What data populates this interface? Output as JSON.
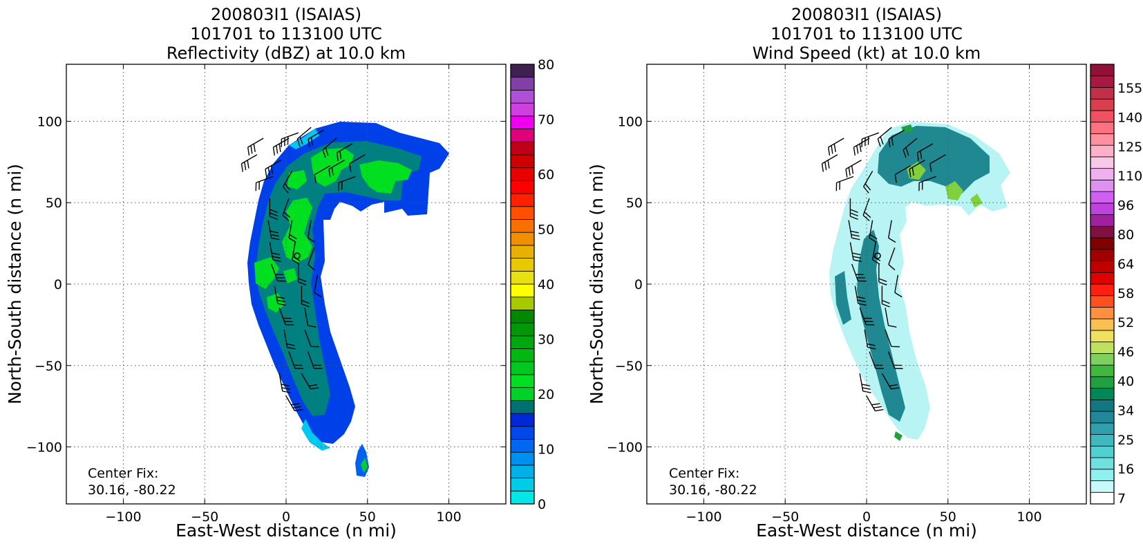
{
  "chart_data": [
    {
      "type": "heatmap",
      "title": [
        "200803I1 (ISAIAS)",
        "101701 to 113100 UTC",
        "Reflectivity (dBZ) at 10.0 km"
      ],
      "xlabel": "East-West distance (n mi)",
      "ylabel": "North-South distance (n mi)",
      "xlim": [
        -135,
        135
      ],
      "ylim": [
        -135,
        135
      ],
      "xticks": [
        -100,
        -50,
        0,
        50,
        100
      ],
      "yticks": [
        -100,
        -50,
        0,
        50,
        100
      ],
      "xtick_labels": [
        "−100",
        "−50",
        "0",
        "50",
        "100"
      ],
      "ytick_labels": [
        "−100",
        "−50",
        "0",
        "50",
        "100"
      ],
      "grid": true,
      "annotation": [
        "Center Fix:",
        "30.16, -80.22"
      ],
      "colorbar": {
        "min": 0,
        "max": 80,
        "step": 2.5,
        "ticks": [
          0,
          10,
          20,
          30,
          40,
          50,
          60,
          70,
          80
        ],
        "tick_labels": [
          "0",
          "10",
          "20",
          "30",
          "40",
          "50",
          "60",
          "70",
          "80"
        ],
        "colors": [
          "#00e8e8",
          "#00cce8",
          "#00b0e8",
          "#0090f0",
          "#0068f0",
          "#0048e8",
          "#0028d8",
          "#007070",
          "#00d028",
          "#00e020",
          "#00c820",
          "#00b810",
          "#00a810",
          "#009808",
          "#008800",
          "#a8c800",
          "#ffff00",
          "#e8e010",
          "#e8c800",
          "#e8b000",
          "#f09000",
          "#f87000",
          "#ff5000",
          "#ff2000",
          "#ff0000",
          "#e80000",
          "#d00000",
          "#c00018",
          "#e0007a",
          "#f000f0",
          "#d040e0",
          "#b050d8",
          "#8040a8",
          "#402050"
        ]
      },
      "field_colors": {
        "weak": "#0040e8",
        "moderate": "#008080",
        "strong": "#00e020"
      }
    },
    {
      "type": "heatmap",
      "title": [
        "200803I1 (ISAIAS)",
        "101701 to 113100 UTC",
        "Wind Speed (kt) at 10.0 km"
      ],
      "xlabel": "East-West distance (n mi)",
      "ylabel": "North-South distance (n mi)",
      "xlim": [
        -135,
        135
      ],
      "ylim": [
        -135,
        135
      ],
      "xticks": [
        -100,
        -50,
        0,
        50,
        100
      ],
      "yticks": [
        -100,
        -50,
        0,
        50,
        100
      ],
      "xtick_labels": [
        "−100",
        "−50",
        "0",
        "50",
        "100"
      ],
      "ytick_labels": [
        "−100",
        "−50",
        "0",
        "50",
        "100"
      ],
      "grid": true,
      "annotation": [
        "Center Fix:",
        "30.16, -80.22"
      ],
      "colorbar": {
        "ticks": [
          7,
          16,
          25,
          34,
          40,
          46,
          52,
          58,
          64,
          80,
          96,
          110,
          125,
          140,
          155
        ],
        "tick_labels": [
          "7",
          "16",
          "25",
          "34",
          "40",
          "46",
          "52",
          "58",
          "64",
          "80",
          "96",
          "110",
          "125",
          "140",
          "155"
        ],
        "colors": [
          "#ffffff",
          "#c8f8f8",
          "#90f0f0",
          "#70e0e0",
          "#50d0d0",
          "#40b8c0",
          "#30a0b0",
          "#208898",
          "#107880",
          "#008858",
          "#20a040",
          "#40b840",
          "#80d060",
          "#c0e060",
          "#f0e060",
          "#f8c050",
          "#ff9040",
          "#ff5020",
          "#ff2010",
          "#e00000",
          "#c00000",
          "#a00000",
          "#800000",
          "#801040",
          "#a020a0",
          "#c040e0",
          "#d060f0",
          "#e090f0",
          "#f0b0f0",
          "#f8c8e8",
          "#ffb0c8",
          "#ff90a0",
          "#ff7080",
          "#f05060",
          "#d84050",
          "#c03048",
          "#a81840",
          "#901038"
        ]
      },
      "field_colors": {
        "weak": "#c0f8f8",
        "moderate": "#208890",
        "strong": "#80d040"
      }
    }
  ]
}
